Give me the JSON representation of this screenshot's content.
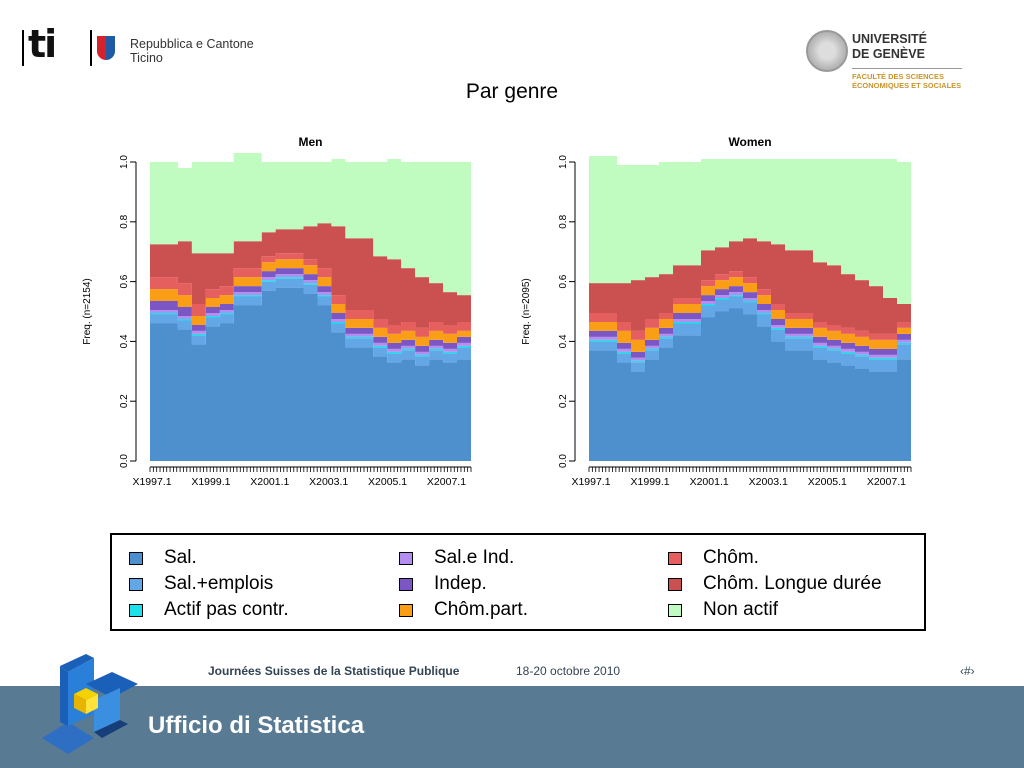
{
  "header": {
    "ti_logo": {
      "mark": "ti",
      "line1": "Repubblica e Cantone",
      "line2": "Ticino"
    },
    "unige_logo": {
      "line1": "UNIVERSITÉ",
      "line2": "DE GENÈVE",
      "line3": "FACULTÉ DES SCIENCES",
      "line4": "ÉCONOMIQUES ET SOCIALES"
    }
  },
  "title": "Par genre",
  "colors": {
    "sal": "#4e8fcd",
    "sal_emplois": "#64a7e6",
    "actif_pas_contr": "#1ee0e8",
    "sal_e_ind": "#b38ef0",
    "indep": "#7a57c4",
    "chom_part": "#f99e16",
    "chom": "#e65f5f",
    "chom_longue": "#cb5050",
    "non_actif": "#c0fcc0"
  },
  "chart_data": [
    {
      "type": "area",
      "title": "Men",
      "ylabel": "Freq. (n=2154)",
      "xlabel": "",
      "ylim": [
        0,
        1
      ],
      "yticks": [
        "0.0",
        "0.2",
        "0.4",
        "0.6",
        "0.8",
        "1.0"
      ],
      "xticklabels": [
        "X1997.1",
        "X1999.1",
        "X2001.1",
        "X2003.1",
        "X2005.1",
        "X2007.1"
      ],
      "x": [
        1997.0,
        1998.0,
        1998.5,
        1999.0,
        1999.5,
        2000.0,
        2001.0,
        2001.5,
        2002.0,
        2002.5,
        2003.0,
        2003.5,
        2004.0,
        2005.0,
        2005.5,
        2006.0,
        2006.5,
        2007.0,
        2007.5,
        2008.0,
        2008.5
      ],
      "series": [
        {
          "name": "Sal.",
          "values": [
            0.46,
            0.44,
            0.39,
            0.45,
            0.46,
            0.52,
            0.57,
            0.58,
            0.58,
            0.56,
            0.52,
            0.43,
            0.38,
            0.35,
            0.33,
            0.34,
            0.32,
            0.34,
            0.33,
            0.34,
            0.36
          ]
        },
        {
          "name": "Sal.+emplois",
          "values": [
            0.03,
            0.03,
            0.03,
            0.03,
            0.03,
            0.03,
            0.03,
            0.03,
            0.03,
            0.03,
            0.03,
            0.03,
            0.03,
            0.03,
            0.03,
            0.03,
            0.03,
            0.03,
            0.03,
            0.04,
            0.04
          ]
        },
        {
          "name": "Actif pas contr.",
          "values": [
            0.005,
            0.005,
            0.005,
            0.005,
            0.005,
            0.005,
            0.005,
            0.005,
            0.005,
            0.005,
            0.005,
            0.005,
            0.005,
            0.005,
            0.005,
            0.005,
            0.005,
            0.005,
            0.005,
            0.005,
            0.01
          ]
        },
        {
          "name": "Sal.e Ind.",
          "values": [
            0.01,
            0.01,
            0.01,
            0.01,
            0.01,
            0.01,
            0.01,
            0.01,
            0.01,
            0.01,
            0.01,
            0.01,
            0.01,
            0.01,
            0.01,
            0.01,
            0.01,
            0.01,
            0.01,
            0.01,
            0.01
          ]
        },
        {
          "name": "Indep.",
          "values": [
            0.03,
            0.03,
            0.02,
            0.02,
            0.02,
            0.02,
            0.02,
            0.02,
            0.02,
            0.02,
            0.02,
            0.02,
            0.02,
            0.02,
            0.02,
            0.02,
            0.02,
            0.02,
            0.02,
            0.02,
            0.02
          ]
        },
        {
          "name": "Chôm.part.",
          "values": [
            0.04,
            0.04,
            0.03,
            0.03,
            0.03,
            0.03,
            0.03,
            0.03,
            0.03,
            0.03,
            0.03,
            0.03,
            0.03,
            0.03,
            0.03,
            0.03,
            0.03,
            0.03,
            0.03,
            0.02,
            0.02
          ]
        },
        {
          "name": "Chôm.",
          "values": [
            0.04,
            0.04,
            0.04,
            0.03,
            0.03,
            0.03,
            0.02,
            0.02,
            0.02,
            0.02,
            0.03,
            0.03,
            0.03,
            0.03,
            0.03,
            0.03,
            0.03,
            0.03,
            0.03,
            0.03,
            0.03
          ]
        },
        {
          "name": "Chôm. Longue durée",
          "values": [
            0.11,
            0.14,
            0.17,
            0.12,
            0.11,
            0.09,
            0.08,
            0.08,
            0.08,
            0.11,
            0.15,
            0.23,
            0.24,
            0.21,
            0.22,
            0.18,
            0.17,
            0.13,
            0.11,
            0.09,
            0.05
          ]
        },
        {
          "name": "Non actif",
          "values": [
            0.275,
            0.245,
            0.305,
            0.305,
            0.305,
            0.295,
            0.235,
            0.225,
            0.225,
            0.215,
            0.205,
            0.225,
            0.255,
            0.315,
            0.335,
            0.355,
            0.385,
            0.405,
            0.435,
            0.445,
            0.46
          ]
        }
      ]
    },
    {
      "type": "area",
      "title": "Women",
      "ylabel": "Freq. (n=2095)",
      "xlabel": "",
      "ylim": [
        0,
        1
      ],
      "yticks": [
        "0.0",
        "0.2",
        "0.4",
        "0.6",
        "0.8",
        "1.0"
      ],
      "xticklabels": [
        "X1997.1",
        "X1999.1",
        "X2001.1",
        "X2003.1",
        "X2005.1",
        "X2007.1"
      ],
      "x": [
        1997.0,
        1998.0,
        1998.5,
        1999.0,
        1999.5,
        2000.0,
        2001.0,
        2001.5,
        2002.0,
        2002.5,
        2003.0,
        2003.5,
        2004.0,
        2005.0,
        2005.5,
        2006.0,
        2006.5,
        2007.0,
        2007.5,
        2008.0,
        2008.5
      ],
      "series": [
        {
          "name": "Sal.",
          "values": [
            0.37,
            0.33,
            0.3,
            0.34,
            0.38,
            0.42,
            0.48,
            0.5,
            0.51,
            0.49,
            0.45,
            0.4,
            0.37,
            0.34,
            0.33,
            0.32,
            0.31,
            0.3,
            0.3,
            0.34,
            0.36
          ]
        },
        {
          "name": "Sal.+emplois",
          "values": [
            0.03,
            0.03,
            0.03,
            0.03,
            0.03,
            0.04,
            0.04,
            0.04,
            0.04,
            0.04,
            0.04,
            0.04,
            0.04,
            0.04,
            0.04,
            0.04,
            0.04,
            0.04,
            0.04,
            0.05,
            0.06
          ]
        },
        {
          "name": "Actif pas contr.",
          "values": [
            0.005,
            0.005,
            0.005,
            0.005,
            0.005,
            0.005,
            0.005,
            0.005,
            0.005,
            0.005,
            0.005,
            0.005,
            0.005,
            0.005,
            0.005,
            0.005,
            0.005,
            0.005,
            0.005,
            0.005,
            0.005
          ]
        },
        {
          "name": "Sal.e Ind.",
          "values": [
            0.01,
            0.01,
            0.01,
            0.01,
            0.01,
            0.01,
            0.01,
            0.01,
            0.01,
            0.01,
            0.01,
            0.01,
            0.01,
            0.01,
            0.01,
            0.01,
            0.01,
            0.01,
            0.01,
            0.01,
            0.01
          ]
        },
        {
          "name": "Indep.",
          "values": [
            0.02,
            0.02,
            0.02,
            0.02,
            0.02,
            0.02,
            0.02,
            0.02,
            0.02,
            0.02,
            0.02,
            0.02,
            0.02,
            0.02,
            0.02,
            0.02,
            0.02,
            0.02,
            0.02,
            0.02,
            0.02
          ]
        },
        {
          "name": "Chôm.part.",
          "values": [
            0.03,
            0.04,
            0.04,
            0.04,
            0.03,
            0.03,
            0.03,
            0.03,
            0.03,
            0.03,
            0.03,
            0.03,
            0.03,
            0.03,
            0.03,
            0.03,
            0.03,
            0.03,
            0.03,
            0.02,
            0.02
          ]
        },
        {
          "name": "Chôm.",
          "values": [
            0.03,
            0.03,
            0.03,
            0.03,
            0.02,
            0.02,
            0.02,
            0.02,
            0.02,
            0.02,
            0.02,
            0.02,
            0.02,
            0.02,
            0.02,
            0.02,
            0.02,
            0.02,
            0.02,
            0.02,
            0.02
          ]
        },
        {
          "name": "Chôm. Longue durée",
          "values": [
            0.1,
            0.13,
            0.17,
            0.14,
            0.13,
            0.11,
            0.1,
            0.09,
            0.1,
            0.13,
            0.16,
            0.2,
            0.21,
            0.2,
            0.2,
            0.18,
            0.17,
            0.16,
            0.12,
            0.06,
            0.04
          ]
        },
        {
          "name": "Non actif",
          "values": [
            0.425,
            0.395,
            0.385,
            0.375,
            0.375,
            0.345,
            0.305,
            0.295,
            0.275,
            0.265,
            0.275,
            0.285,
            0.305,
            0.345,
            0.355,
            0.385,
            0.405,
            0.425,
            0.465,
            0.475,
            0.475
          ]
        }
      ]
    }
  ],
  "legend": {
    "items": [
      {
        "label": "Sal.",
        "color_key": "sal"
      },
      {
        "label": "Sal.+emplois",
        "color_key": "sal_emplois"
      },
      {
        "label": "Actif pas contr.",
        "color_key": "actif_pas_contr"
      },
      {
        "label": "Sal.e Ind.",
        "color_key": "sal_e_ind"
      },
      {
        "label": "Indep.",
        "color_key": "indep"
      },
      {
        "label": "Chôm.part.",
        "color_key": "chom_part"
      },
      {
        "label": "Chôm.",
        "color_key": "chom"
      },
      {
        "label": "Chôm. Longue durée",
        "color_key": "chom_longue"
      },
      {
        "label": "Non actif",
        "color_key": "non_actif"
      }
    ]
  },
  "footer": {
    "conference": "Journées Suisses de la Statistique Publique",
    "date": "18-20 octobre 2010",
    "page": "‹#›",
    "office": "Ufficio di Statistica"
  }
}
